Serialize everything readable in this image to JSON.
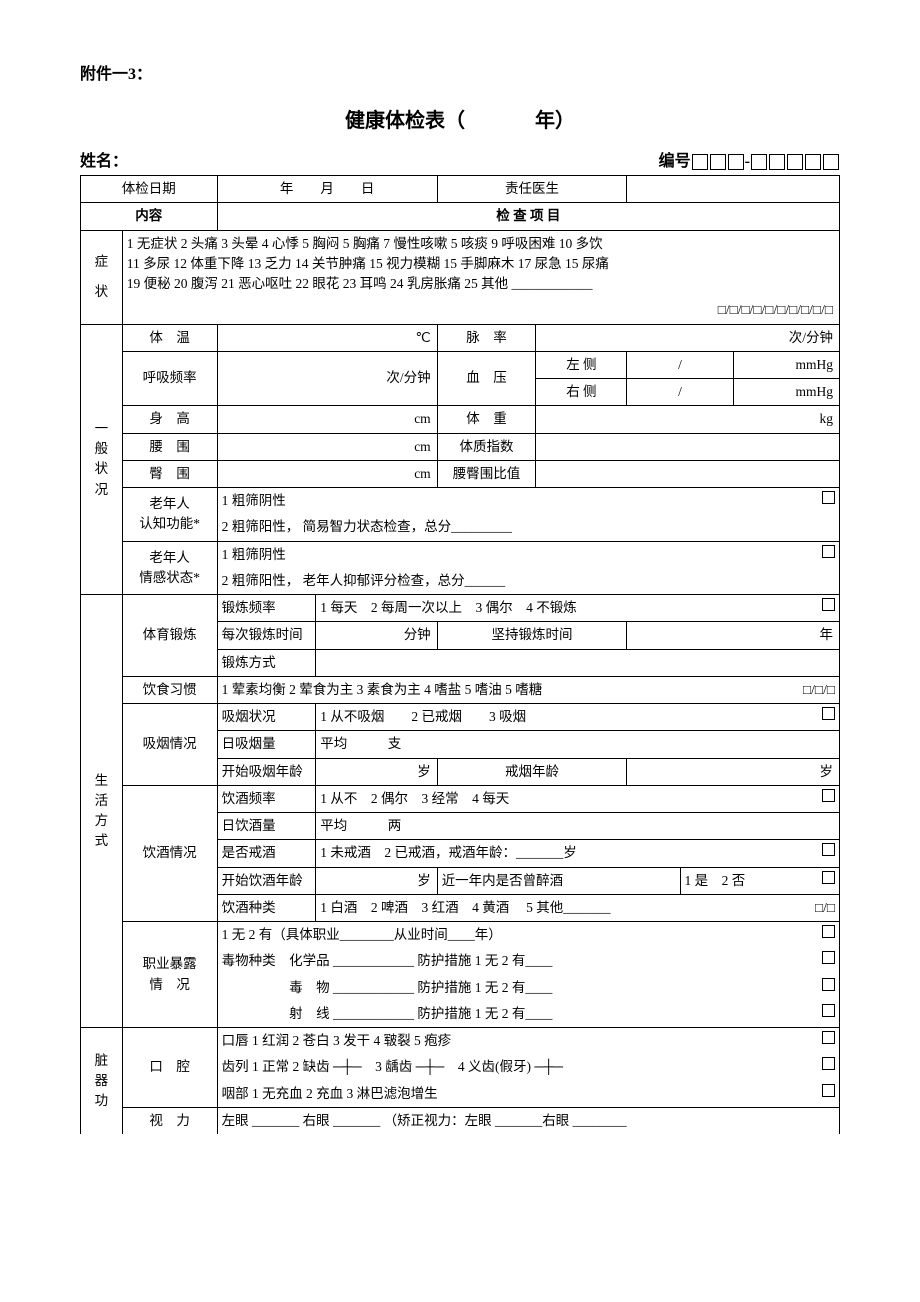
{
  "header_ref": "附件一3：",
  "title_left": "健康体检表（",
  "title_right": "年）",
  "name_label": "姓名：",
  "code_label": "编号",
  "code_dash": "-",
  "row_date_label": "体检日期",
  "row_date_value": "年　　月　　日",
  "row_doctor_label": "责任医生",
  "content_label": "内容",
  "exam_items": "检 查 项 目",
  "symptom_label": "症状",
  "symptom_line1": "1 无症状 2 头痛 3 头晕 4 心悸 5 胸闷 5 胸痛 7 慢性咳嗽 5 咳痰 9 呼吸困难 10 多饮",
  "symptom_line2": "11 多尿 12 体重下降 13 乏力 14 关节肿痛 15 视力模糊 15 手脚麻木 17 尿急 15 尿痛",
  "symptom_line3": "19 便秘 20 腹泻 21 恶心呕吐 22 眼花 23 耳鸣 24 乳房胀痛 25 其他 ____________",
  "symptom_boxes": "□/□/□/□/□/□/□/□/□/□",
  "general_label": "一般状况",
  "temp_label": "体　温",
  "temp_unit": "℃",
  "pulse_label": "脉　率",
  "pulse_unit": "次/分钟",
  "resp_label": "呼吸频率",
  "resp_unit": "次/分钟",
  "bp_label": "血　压",
  "bp_left": "左  侧",
  "bp_right": "右  侧",
  "bp_slash": "/",
  "bp_unit": "mmHg",
  "height_label": "身　高",
  "height_unit": "cm",
  "weight_label": "体　重",
  "weight_unit": "kg",
  "waist_label": "腰　围",
  "waist_unit": "cm",
  "bmi_label": "体质指数",
  "hip_label": "臀　围",
  "hip_unit": "cm",
  "whr_label": "腰臀围比值",
  "cog_label1": "老年人",
  "cog_label2": "认知功能*",
  "cog_text1": "1 粗筛阴性",
  "cog_text2": "2 粗筛阳性， 简易智力状态检查，总分_________",
  "emo_label1": "老年人",
  "emo_label2": "情感状态*",
  "emo_text1": "1 粗筛阴性",
  "emo_text2": "2 粗筛阳性， 老年人抑郁评分检查，总分______",
  "life_label": "生活方式",
  "exercise_label": "体育锻炼",
  "ex_freq_label": "锻炼频率",
  "ex_freq_opts": "1 每天　2 每周一次以上　3 偶尔　4 不锻炼",
  "ex_time_label": "每次锻炼时间",
  "ex_time_unit": "分钟",
  "ex_keep_label": "坚持锻炼时间",
  "ex_keep_unit": "年",
  "ex_type_label": "锻炼方式",
  "diet_label": "饮食习惯",
  "diet_opts": "1 荤素均衡 2 荤食为主 3 素食为主 4 嗜盐 5 嗜油 5 嗜糖",
  "diet_boxes": "□/□/□",
  "smoke_label": "吸烟情况",
  "smoke_status_label": "吸烟状况",
  "smoke_status_opts": "1 从不吸烟　　2 已戒烟　　3 吸烟",
  "smoke_daily_label": "日吸烟量",
  "smoke_daily_value": "平均　　　支",
  "smoke_start_label": "开始吸烟年龄",
  "smoke_start_unit": "岁",
  "smoke_quit_label": "戒烟年龄",
  "smoke_quit_unit": "岁",
  "drink_label": "饮酒情况",
  "drink_freq_label": "饮酒频率",
  "drink_freq_opts": "1 从不　2 偶尔　3 经常　4 每天",
  "drink_daily_label": "日饮酒量",
  "drink_daily_value": "平均　　　两",
  "drink_quit_label": "是否戒酒",
  "drink_quit_opts": "1 未戒酒　2 已戒酒，戒酒年龄：_______岁",
  "drink_start_label": "开始饮酒年龄",
  "drink_start_unit": "岁",
  "drink_drunk_label": "近一年内是否曾醉酒",
  "drink_drunk_opts": "1 是　2 否",
  "drink_type_label": "饮酒种类",
  "drink_type_opts": "1 白酒　2 啤酒　3 红酒　4 黄酒　 5 其他_______",
  "drink_type_boxes": "□/□",
  "occ_label1": "职业暴露",
  "occ_label2": "情　况",
  "occ_line1": "1 无 2 有（具体职业________从业时间____年）",
  "occ_line2": "毒物种类　化学品 ____________ 防护措施 1 无 2 有____",
  "occ_line3": "　　　　　毒　物 ____________ 防护措施 1 无 2 有____",
  "occ_line4": "　　　　　射　线 ____________ 防护措施 1 无 2 有____",
  "organ_label": "脏器功",
  "mouth_label": "口　腔",
  "mouth_line1": "口唇 1 红润 2 苍白 3 发干 4 皲裂 5 疱疹",
  "mouth_line2": "齿列 1 正常 2 缺齿 ─┼─　3 龋齿 ─┼─　4 义齿(假牙) ─┼─",
  "mouth_line3": "咽部 1 无充血 2 充血 3 淋巴滤泡增生",
  "vision_label": "视　力",
  "vision_text": "左眼 _______ 右眼 _______ （矫正视力：左眼 _______右眼 ________"
}
